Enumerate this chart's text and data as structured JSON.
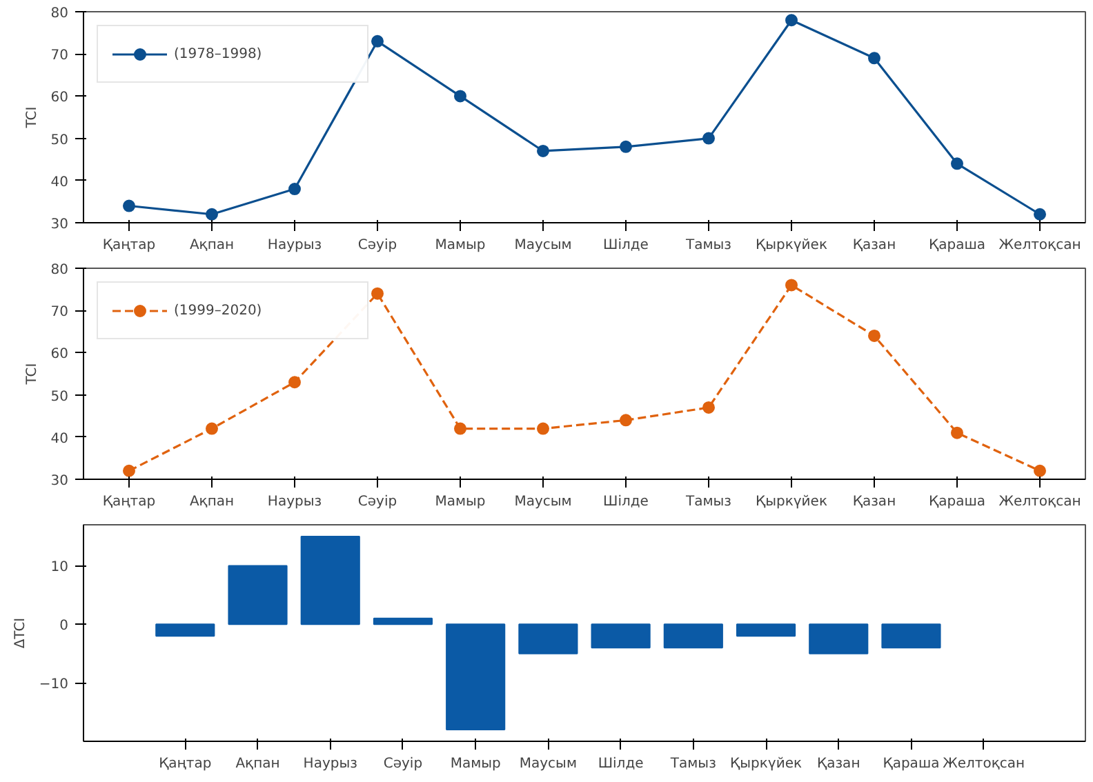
{
  "chart_data": [
    {
      "type": "line",
      "categories": [
        "Қаңтар",
        "Ақпан",
        "Наурыз",
        "Сәуір",
        "Мамыр",
        "Маусым",
        "Шілде",
        "Тамыз",
        "Қыркүйек",
        "Қазан",
        "Қараша",
        "Желтоқсан"
      ],
      "ylabel": "TCI",
      "ylim": [
        30,
        80
      ],
      "yticks": [
        30,
        40,
        50,
        60,
        70,
        80
      ],
      "grid": false,
      "legend": "top left",
      "marker": "circle",
      "line_style": "solid",
      "series": [
        {
          "name": "(1978–1998)",
          "color": "#0b4f8f",
          "values": [
            34,
            32,
            38,
            73,
            60,
            47,
            48,
            50,
            78,
            69,
            44,
            32
          ]
        }
      ]
    },
    {
      "type": "line",
      "categories": [
        "Қаңтар",
        "Ақпан",
        "Наурыз",
        "Сәуір",
        "Мамыр",
        "Маусым",
        "Шілде",
        "Тамыз",
        "Қыркүйек",
        "Қазан",
        "Қараша",
        "Желтоқсан"
      ],
      "ylabel": "TCI",
      "ylim": [
        30,
        80
      ],
      "yticks": [
        30,
        40,
        50,
        60,
        70,
        80
      ],
      "grid": false,
      "legend": "top left",
      "marker": "circle",
      "line_style": "dashed",
      "series": [
        {
          "name": "(1999–2020)",
          "color": "#e0620e",
          "values": [
            32,
            42,
            53,
            74,
            42,
            42,
            44,
            47,
            76,
            64,
            41,
            32
          ]
        }
      ]
    },
    {
      "type": "bar",
      "categories": [
        "Қаңтар",
        "Ақпан",
        "Наурыз",
        "Сәуір",
        "Мамыр",
        "Маусым",
        "Шілде",
        "Тамыз",
        "Қыркүйек",
        "Қазан",
        "Қараша",
        "Желтоқсан"
      ],
      "ylabel": "ΔTCI",
      "ylim": [
        -20,
        17
      ],
      "yticks": [
        -10,
        0,
        10
      ],
      "grid": false,
      "series": [
        {
          "color": "#0b5aa6",
          "values": [
            -2,
            10,
            15,
            1,
            -18,
            -5,
            -4,
            -4,
            -2,
            -5,
            -4,
            null
          ]
        }
      ]
    }
  ]
}
